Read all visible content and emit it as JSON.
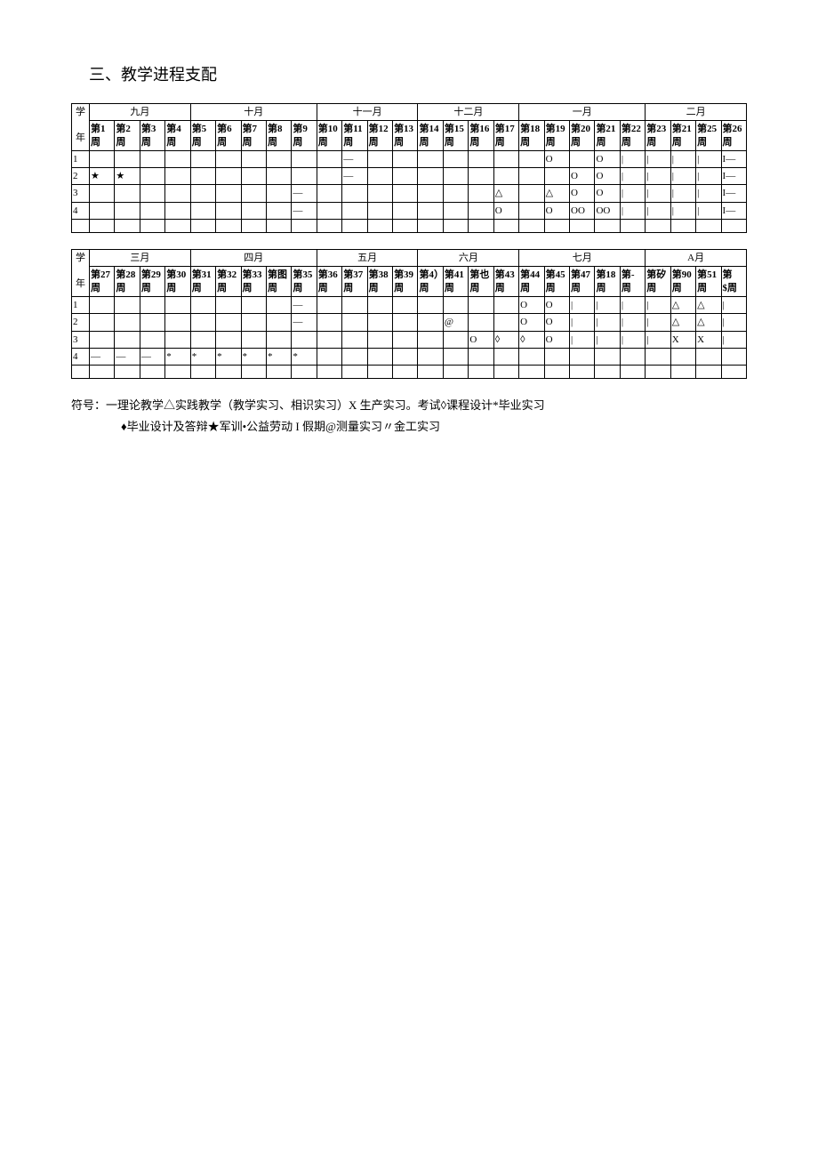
{
  "heading": "三、教学进程支配",
  "table1": {
    "yearLabelTop": "学",
    "yearLabelBottom": "年",
    "months": [
      "九月",
      "十月",
      "十一月",
      "十二月",
      "一月",
      "二月"
    ],
    "monthSpans": [
      4,
      5,
      4,
      4,
      5,
      4
    ],
    "weeks": [
      "第1周",
      "第2周",
      "第3周",
      "第4周",
      "第5周",
      "第6周",
      "第7周",
      "第8周",
      "第9周",
      "第10周",
      "第11周",
      "第12周",
      "第13周",
      "第14周",
      "第15周",
      "第16周",
      "第17周",
      "第18周",
      "第19周",
      "第20周",
      "第21周",
      "第22周",
      "第23周",
      "第21周",
      "第25周",
      "第26周"
    ],
    "rows": [
      {
        "y": "1",
        "cells": [
          "",
          "",
          "",
          "",
          "",
          "",
          "",
          "",
          "",
          "",
          "—",
          "",
          "",
          "",
          "",
          "",
          "",
          "",
          "O",
          "",
          "O",
          "|",
          "|",
          "|",
          "|",
          "I—"
        ]
      },
      {
        "y": "2",
        "cells": [
          "★",
          "★",
          "",
          "",
          "",
          "",
          "",
          "",
          "",
          "",
          "—",
          "",
          "",
          "",
          "",
          "",
          "",
          "",
          "",
          "O",
          "O",
          "|",
          "|",
          "|",
          "|",
          "I—"
        ]
      },
      {
        "y": "3",
        "cells": [
          "",
          "",
          "",
          "",
          "",
          "",
          "",
          "",
          "—",
          "",
          "",
          "",
          "",
          "",
          "",
          "",
          "△",
          "",
          "△",
          "O",
          "O",
          "|",
          "|",
          "|",
          "|",
          "I—"
        ]
      },
      {
        "y": "4",
        "cells": [
          "",
          "",
          "",
          "",
          "",
          "",
          "",
          "",
          "—",
          "",
          "",
          "",
          "",
          "",
          "",
          "",
          "O",
          "",
          "O",
          "OO",
          "OO",
          "|",
          "|",
          "|",
          "|",
          "I—"
        ]
      }
    ]
  },
  "table2": {
    "yearLabelTop": "学",
    "yearLabelBottom": "年",
    "months": [
      "三月",
      "四月",
      "五月",
      "六月",
      "七月",
      "A月"
    ],
    "monthSpans": [
      4,
      5,
      4,
      4,
      5,
      4
    ],
    "weeks": [
      "第27周",
      "第28周",
      "第29周",
      "第30周",
      "第31周",
      "第32周",
      "第33周",
      "第图周",
      "第35周",
      "第36周",
      "第37周",
      "第38周",
      "第39周",
      "第4）周",
      "第41周",
      "第也周",
      "第43周",
      "第44周",
      "第45周",
      "第47周",
      "第18周",
      "第-周",
      "第矽周",
      "第90周",
      "第51周",
      "第$周"
    ],
    "rows": [
      {
        "y": "1",
        "cells": [
          "",
          "",
          "",
          "",
          "",
          "",
          "",
          "",
          "—",
          "",
          "",
          "",
          "",
          "",
          "",
          "",
          "",
          "O",
          "O",
          "|",
          "|",
          "|",
          "|",
          "△",
          "△",
          "|"
        ]
      },
      {
        "y": "2",
        "cells": [
          "",
          "",
          "",
          "",
          "",
          "",
          "",
          "",
          "—",
          "",
          "",
          "",
          "",
          "",
          "@",
          "",
          "",
          "O",
          "O",
          "|",
          "|",
          "|",
          "|",
          "△",
          "△",
          "|"
        ]
      },
      {
        "y": "3",
        "cells": [
          "",
          "",
          "",
          "",
          "",
          "",
          "",
          "",
          "",
          "",
          "",
          "",
          "",
          "",
          "",
          "O",
          "◊",
          "◊",
          "O",
          "|",
          "|",
          "|",
          "|",
          "X",
          "X",
          "|"
        ]
      },
      {
        "y": "4",
        "cells": [
          "—",
          "—",
          "—",
          "*",
          "*",
          "*",
          "*",
          "*",
          "*",
          "",
          "",
          "",
          "",
          "",
          "",
          "",
          "",
          "",
          "",
          "",
          "",
          "",
          "",
          "",
          "",
          ""
        ]
      }
    ]
  },
  "legend": {
    "line1": "符号：一理论教学△实践教学（教学实习、相识实习）X 生产实习。考试◊课程设计*毕业实习",
    "line2": "♦毕业设计及答辩★军训•公益劳动 I 假期@测量实习〃金工实习"
  }
}
